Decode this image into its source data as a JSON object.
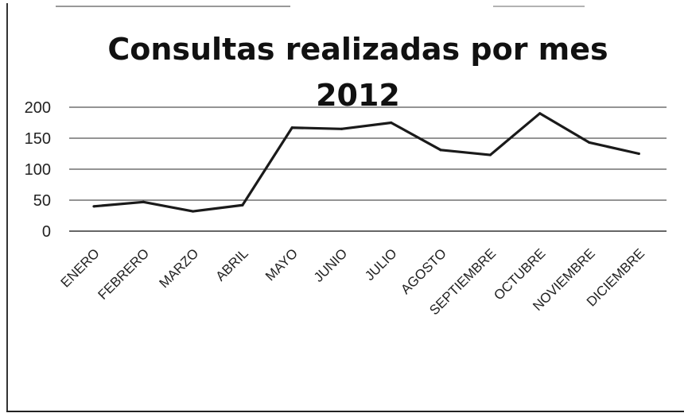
{
  "chart_data": {
    "type": "line",
    "title_line1": "Consultas realizadas por mes",
    "title_line2": "2012",
    "categories": [
      "ENERO",
      "FEBRERO",
      "MARZO",
      "ABRIL",
      "MAYO",
      "JUNIO",
      "JULIO",
      "AGOSTO",
      "SEPTIEMBRE",
      "OCTUBRE",
      "NOVIEMBRE",
      "DICIEMBRE"
    ],
    "values": [
      40,
      47,
      32,
      42,
      167,
      165,
      175,
      131,
      123,
      190,
      143,
      125
    ],
    "ylim": [
      0,
      200
    ],
    "yticks": [
      0,
      50,
      100,
      150,
      200
    ],
    "grid": true,
    "legend": "none",
    "line_color": "#1a1a1a"
  }
}
